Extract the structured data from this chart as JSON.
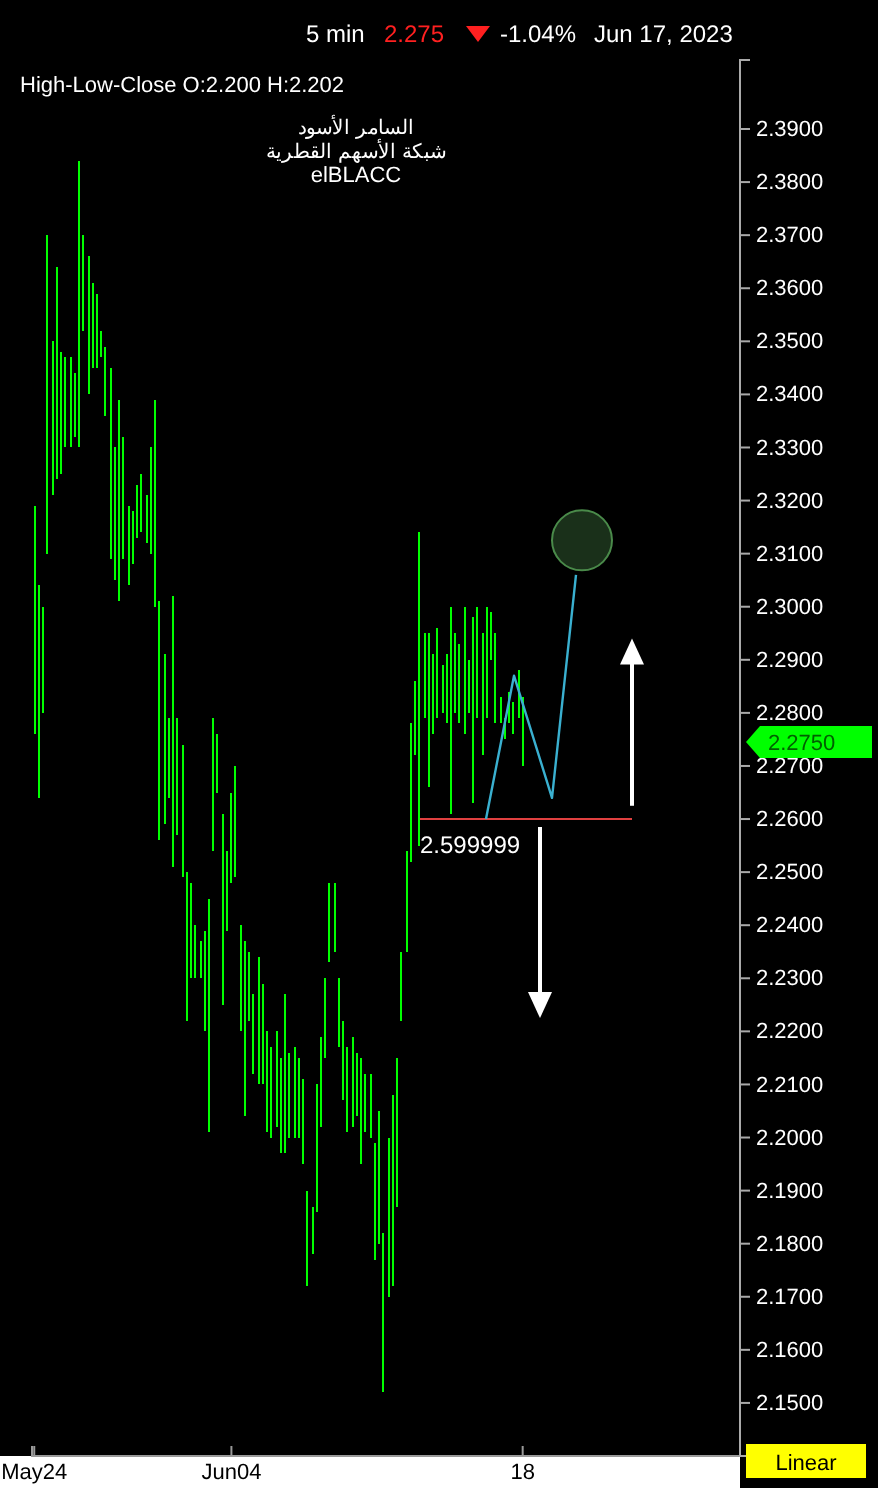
{
  "chart_data": {
    "type": "bar",
    "title": "High-Low-Close O:2.200  H:2.202",
    "categories": [
      "May24",
      null,
      null,
      null,
      null,
      null,
      null,
      null,
      null,
      null,
      null,
      null,
      null,
      null,
      null,
      null,
      null,
      null,
      null,
      null,
      null,
      null,
      null,
      null,
      null,
      null,
      null,
      null,
      null,
      null,
      null,
      null,
      null,
      null,
      null,
      null,
      null,
      null,
      null,
      null,
      null,
      null,
      null,
      null,
      "Jun04",
      null,
      null,
      null,
      null,
      null,
      null,
      null,
      null,
      null,
      null,
      null,
      null,
      null,
      null,
      null,
      null,
      null,
      null,
      null,
      null,
      null,
      null,
      null,
      null,
      null,
      null,
      null,
      null,
      null,
      null,
      null,
      null,
      null,
      null,
      null,
      null,
      null,
      null,
      null,
      null,
      null,
      null,
      null,
      null,
      null,
      null,
      null,
      null,
      null,
      null,
      null,
      null,
      null,
      null,
      null,
      null,
      null,
      null,
      null,
      null,
      null,
      null,
      null,
      null,
      "18",
      null,
      null,
      null,
      null,
      null,
      null,
      null,
      null,
      null,
      null,
      null,
      null,
      null,
      null,
      null,
      null,
      null,
      null,
      null,
      null,
      null,
      null,
      null,
      null,
      null,
      null,
      null,
      null,
      null,
      null,
      null,
      null,
      null,
      null,
      null,
      null,
      null,
      null,
      null,
      null,
      null,
      null,
      null,
      null,
      null,
      null,
      null,
      null
    ],
    "ylim": [
      2.14,
      2.403
    ],
    "yticks": [
      {
        "value": 2.15,
        "label": "2.1500"
      },
      {
        "value": 2.16,
        "label": "2.1600"
      },
      {
        "value": 2.17,
        "label": "2.1700"
      },
      {
        "value": 2.18,
        "label": "2.1800"
      },
      {
        "value": 2.19,
        "label": "2.1900"
      },
      {
        "value": 2.2,
        "label": "2.2000"
      },
      {
        "value": 2.21,
        "label": "2.2100"
      },
      {
        "value": 2.22,
        "label": "2.2200"
      },
      {
        "value": 2.23,
        "label": "2.2300"
      },
      {
        "value": 2.24,
        "label": "2.2400"
      },
      {
        "value": 2.25,
        "label": "2.2500"
      },
      {
        "value": 2.26,
        "label": "2.2600"
      },
      {
        "value": 2.27,
        "label": "2.2700"
      },
      {
        "value": 2.28,
        "label": "2.2800"
      },
      {
        "value": 2.29,
        "label": "2.2900"
      },
      {
        "value": 2.3,
        "label": "2.3000"
      },
      {
        "value": 2.31,
        "label": "2.3100"
      },
      {
        "value": 2.32,
        "label": "2.3200"
      },
      {
        "value": 2.33,
        "label": "2.3300"
      },
      {
        "value": 2.34,
        "label": "2.3400"
      },
      {
        "value": 2.35,
        "label": "2.3500"
      },
      {
        "value": 2.36,
        "label": "2.3600"
      },
      {
        "value": 2.37,
        "label": "2.3700"
      },
      {
        "value": 2.38,
        "label": "2.3800"
      },
      {
        "value": 2.39,
        "label": "2.3900"
      }
    ],
    "series": [
      {
        "color": "#00ff00",
        "base": [
          2.276,
          2.264,
          2.28,
          2.31,
          2.321,
          2.324,
          2.325,
          2.33,
          2.33,
          2.332,
          2.33,
          2.352,
          2.34,
          2.345,
          2.345,
          2.347,
          2.336,
          2.309,
          2.305,
          2.301,
          2.309,
          2.304,
          2.308,
          2.313,
          2.314,
          2.312,
          2.31,
          2.3,
          2.256,
          2.259,
          2.264,
          2.251,
          2.257,
          2.249,
          2.222,
          2.23,
          2.23,
          2.23,
          2.22,
          2.201,
          2.254,
          2.265,
          2.225,
          2.239,
          2.248,
          2.249,
          2.22,
          2.204,
          2.222,
          2.212,
          2.21,
          2.21,
          2.201,
          2.2,
          2.202,
          2.197,
          2.197,
          2.2,
          2.2,
          2.2,
          2.195,
          2.172,
          2.178,
          2.186,
          2.202,
          2.215,
          2.233,
          2.235,
          2.217,
          2.207,
          2.201,
          2.202,
          2.204,
          2.195,
          2.201,
          2.2,
          2.177,
          2.18,
          2.152,
          2.17,
          2.172,
          2.187,
          2.222,
          2.235,
          2.252,
          2.272,
          2.255,
          2.279,
          2.266,
          2.276,
          2.279,
          2.28,
          2.278,
          2.261,
          2.28,
          2.278,
          2.276,
          2.28,
          2.263,
          2.279,
          2.272,
          2.279,
          2.29,
          2.278,
          2.278,
          2.275,
          2.278,
          2.276,
          2.279,
          2.27,
          null,
          null,
          null,
          null,
          null,
          null,
          null,
          null,
          null,
          null,
          null,
          null,
          null,
          null,
          null,
          null,
          null,
          null,
          null,
          null,
          null,
          null,
          null,
          null,
          null,
          null,
          null,
          null,
          null,
          null,
          null,
          null,
          null,
          null,
          null,
          null,
          null,
          null,
          null,
          null,
          null,
          null,
          null,
          null,
          null,
          null,
          null,
          null
        ],
        "values": [
          0.043,
          0.04,
          0.02,
          0.06,
          0.029,
          0.04,
          0.023,
          0.017,
          0.017,
          0.012,
          0.054,
          0.018,
          0.026,
          0.016,
          0.014,
          0.005,
          0.013,
          0.036,
          0.025,
          0.038,
          0.023,
          0.015,
          0.01,
          0.01,
          0.011,
          0.009,
          0.02,
          0.039,
          0.045,
          0.032,
          0.015,
          0.051,
          0.022,
          0.025,
          0.028,
          0.018,
          0.01,
          0.007,
          0.019,
          0.044,
          0.025,
          0.011,
          0.036,
          0.015,
          0.017,
          0.021,
          0.02,
          0.033,
          0.013,
          0.015,
          0.024,
          0.019,
          0.019,
          0.017,
          0.018,
          0.018,
          0.03,
          0.016,
          0.017,
          0.015,
          0.016,
          0.018,
          0.009,
          0.024,
          0.017,
          0.015,
          0.015,
          0.013,
          0.013,
          0.015,
          0.016,
          0.017,
          0.012,
          0.02,
          0.011,
          0.012,
          0.022,
          0.025,
          0.03,
          0.03,
          0.036,
          0.028,
          0.013,
          0.019,
          0.026,
          0.014,
          0.059,
          0.016,
          0.029,
          0.015,
          0.017,
          0.009,
          0.013,
          0.039,
          0.015,
          0.015,
          0.024,
          0.01,
          0.035,
          0.021,
          0.023,
          0.021,
          0.009,
          0.017,
          0.005,
          0.004,
          0.006,
          0.006,
          0.009,
          0.013,
          null,
          null,
          null,
          null,
          null,
          null,
          null,
          null,
          null,
          null,
          null,
          null,
          null,
          null,
          null,
          null,
          null,
          null,
          null,
          null,
          null,
          null,
          null,
          null,
          null,
          null,
          null,
          null,
          null,
          null,
          null,
          null,
          null,
          null,
          null,
          null,
          null,
          null,
          null,
          null,
          null,
          null,
          null,
          null,
          null,
          null,
          null,
          null
        ]
      }
    ],
    "ref_lines": [
      {
        "axis": "y",
        "value": 2.26,
        "color": "#e04040"
      }
    ],
    "annotations": [
      "5 min",
      "2.275",
      "-1.04%",
      "Jun 17, 2023",
      "السامر الأسود",
      "شبكة الأسهم القطرية",
      "elBLACC",
      "2.2750",
      "Linear",
      "2.599999"
    ]
  }
}
